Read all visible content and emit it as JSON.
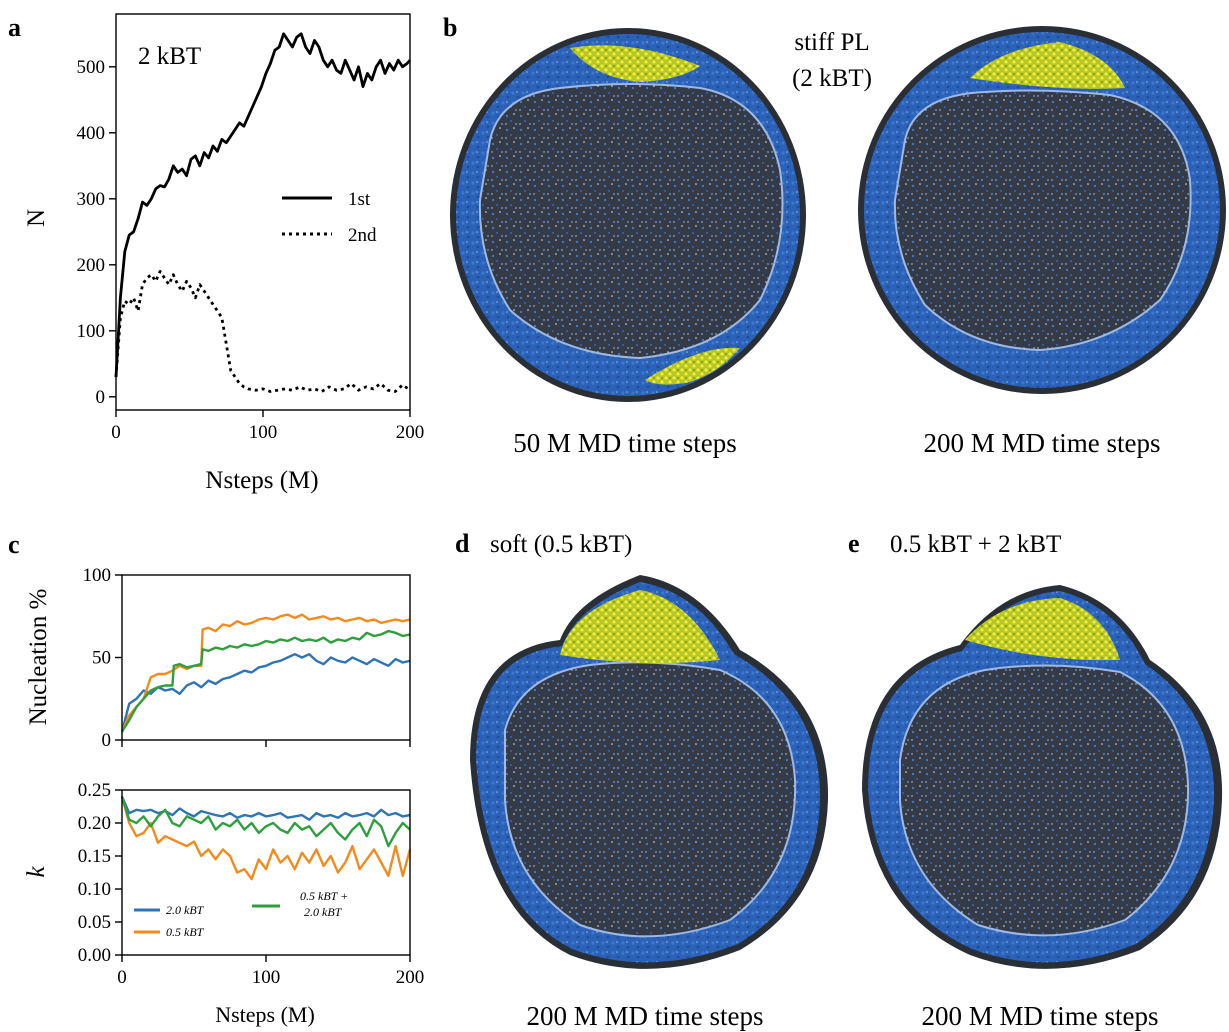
{
  "panels": {
    "a": {
      "letter": "a",
      "annotation": "2 kBT",
      "xlabel": "Nsteps (M)",
      "ylabel": "N",
      "legend": [
        "1st",
        "2nd"
      ]
    },
    "b": {
      "letter": "b",
      "title_line1": "stiff PL",
      "title_line2": "(2 kBT)",
      "caption_left": "50 M MD time steps",
      "caption_right": "200 M MD time steps"
    },
    "c": {
      "letter": "c",
      "top_ylabel": "Nucleation %",
      "bottom_ylabel": "k",
      "xlabel": "Nsteps (M)",
      "legend": [
        "2.0 kBT",
        "0.5 kBT",
        "0.5 kBT +",
        "2.0 kBT"
      ]
    },
    "d": {
      "letter": "d",
      "title": "soft (0.5 kBT)",
      "caption": "200 M MD time steps"
    },
    "e": {
      "letter": "e",
      "title": "0.5 kBT + 2 kBT",
      "caption": "200 M MD time steps"
    }
  },
  "colors": {
    "blue": "#2f74b5",
    "orange": "#f28a1e",
    "green": "#2f9e3c",
    "shell": "#2b62b8",
    "cavity": "#333a44",
    "cluster": "#cbd32a"
  },
  "chart_data": [
    {
      "id": "a",
      "type": "line",
      "xlabel": "Nsteps (M)",
      "ylabel": "N",
      "xlim": [
        0,
        200
      ],
      "ylim": [
        -20,
        580
      ],
      "xticks": [
        0,
        100,
        200
      ],
      "yticks": [
        0,
        100,
        200,
        300,
        400,
        500
      ],
      "legend_position": "center-right",
      "series": [
        {
          "name": "1st",
          "style": "solid",
          "x": [
            0,
            3,
            6,
            9,
            12,
            15,
            18,
            21,
            24,
            27,
            30,
            33,
            36,
            39,
            42,
            45,
            48,
            51,
            54,
            57,
            60,
            63,
            66,
            69,
            72,
            75,
            78,
            81,
            84,
            87,
            90,
            93,
            96,
            99,
            102,
            105,
            108,
            111,
            114,
            117,
            120,
            123,
            126,
            129,
            132,
            135,
            138,
            141,
            144,
            147,
            150,
            153,
            156,
            159,
            162,
            165,
            168,
            171,
            174,
            177,
            180,
            183,
            186,
            189,
            192,
            195,
            198,
            200
          ],
          "y": [
            30,
            150,
            220,
            245,
            250,
            270,
            295,
            290,
            300,
            315,
            320,
            318,
            330,
            350,
            340,
            345,
            335,
            360,
            365,
            350,
            370,
            362,
            380,
            372,
            390,
            385,
            395,
            405,
            415,
            410,
            425,
            440,
            455,
            470,
            490,
            505,
            525,
            530,
            550,
            540,
            530,
            545,
            550,
            530,
            520,
            540,
            530,
            510,
            500,
            510,
            495,
            490,
            510,
            495,
            480,
            500,
            470,
            490,
            480,
            500,
            510,
            490,
            505,
            495,
            510,
            500,
            505,
            510
          ]
        },
        {
          "name": "2nd",
          "style": "dotted",
          "x": [
            0,
            3,
            6,
            9,
            12,
            15,
            18,
            21,
            24,
            27,
            30,
            33,
            36,
            39,
            42,
            45,
            48,
            51,
            54,
            57,
            60,
            63,
            66,
            69,
            72,
            75,
            78,
            81,
            84,
            87,
            90,
            95,
            100,
            105,
            110,
            115,
            120,
            125,
            130,
            135,
            140,
            145,
            150,
            155,
            160,
            165,
            170,
            175,
            180,
            185,
            190,
            195,
            200
          ],
          "y": [
            30,
            120,
            145,
            140,
            150,
            130,
            170,
            180,
            185,
            175,
            190,
            180,
            170,
            185,
            170,
            160,
            175,
            165,
            150,
            170,
            160,
            150,
            140,
            130,
            120,
            80,
            40,
            30,
            20,
            15,
            12,
            10,
            12,
            8,
            10,
            12,
            10,
            15,
            10,
            12,
            8,
            15,
            10,
            12,
            20,
            10,
            15,
            12,
            20,
            10,
            8,
            18,
            10
          ]
        }
      ]
    },
    {
      "id": "c-top",
      "type": "line",
      "ylabel": "Nucleation %",
      "xlim": [
        0,
        200
      ],
      "ylim": [
        0,
        100
      ],
      "yticks": [
        0,
        50,
        100
      ],
      "series": [
        {
          "name": "2.0 kBT",
          "color": "#2f74b5",
          "x": [
            0,
            5,
            10,
            15,
            20,
            25,
            30,
            35,
            40,
            45,
            50,
            55,
            60,
            65,
            70,
            75,
            80,
            85,
            90,
            95,
            100,
            105,
            110,
            115,
            120,
            125,
            130,
            135,
            140,
            145,
            150,
            155,
            160,
            165,
            170,
            175,
            180,
            185,
            190,
            195,
            200
          ],
          "y": [
            5,
            22,
            25,
            30,
            28,
            32,
            30,
            31,
            28,
            33,
            35,
            32,
            36,
            34,
            37,
            38,
            40,
            42,
            41,
            44,
            45,
            47,
            48,
            50,
            52,
            50,
            52,
            48,
            46,
            50,
            48,
            47,
            50,
            48,
            46,
            49,
            47,
            45,
            49,
            47,
            48
          ]
        },
        {
          "name": "0.5 kBT",
          "color": "#f28a1e",
          "x": [
            0,
            5,
            10,
            15,
            20,
            25,
            30,
            35,
            40,
            45,
            50,
            55,
            56,
            60,
            65,
            70,
            75,
            80,
            85,
            90,
            95,
            100,
            105,
            110,
            115,
            120,
            125,
            130,
            135,
            140,
            145,
            150,
            155,
            160,
            165,
            170,
            175,
            180,
            185,
            190,
            195,
            200
          ],
          "y": [
            5,
            15,
            20,
            25,
            38,
            40,
            40,
            42,
            45,
            43,
            45,
            45,
            67,
            68,
            66,
            70,
            69,
            72,
            70,
            71,
            73,
            74,
            73,
            75,
            76,
            74,
            76,
            73,
            74,
            75,
            73,
            74,
            72,
            73,
            74,
            72,
            73,
            71,
            72,
            73,
            72,
            73
          ]
        },
        {
          "name": "0.5 kBT + 2.0 kBT",
          "color": "#2f9e3c",
          "x": [
            0,
            5,
            10,
            15,
            20,
            25,
            30,
            35,
            36,
            40,
            45,
            50,
            55,
            56,
            60,
            65,
            70,
            75,
            80,
            85,
            90,
            95,
            100,
            105,
            110,
            115,
            120,
            125,
            130,
            135,
            140,
            145,
            150,
            155,
            160,
            165,
            170,
            175,
            180,
            185,
            190,
            195,
            200
          ],
          "y": [
            5,
            12,
            20,
            25,
            30,
            32,
            33,
            33,
            45,
            46,
            44,
            45,
            46,
            55,
            54,
            56,
            55,
            57,
            56,
            58,
            57,
            58,
            60,
            59,
            61,
            60,
            62,
            60,
            61,
            60,
            62,
            59,
            61,
            60,
            62,
            61,
            65,
            63,
            64,
            66,
            65,
            63,
            64
          ]
        }
      ]
    },
    {
      "id": "c-bottom",
      "type": "line",
      "xlabel": "Nsteps (M)",
      "ylabel": "k",
      "xlim": [
        0,
        200
      ],
      "ylim": [
        0,
        0.25
      ],
      "xticks": [
        0,
        100,
        200
      ],
      "yticks": [
        0.0,
        0.05,
        0.1,
        0.15,
        0.2,
        0.25
      ],
      "legend_position": "lower-left",
      "series": [
        {
          "name": "2.0 kBT",
          "color": "#2f74b5",
          "x": [
            0,
            5,
            10,
            15,
            20,
            25,
            30,
            35,
            40,
            45,
            50,
            55,
            60,
            65,
            70,
            75,
            80,
            85,
            90,
            95,
            100,
            105,
            110,
            115,
            120,
            125,
            130,
            135,
            140,
            145,
            150,
            155,
            160,
            165,
            170,
            175,
            180,
            185,
            190,
            195,
            200
          ],
          "y": [
            0.24,
            0.215,
            0.22,
            0.218,
            0.22,
            0.215,
            0.218,
            0.212,
            0.222,
            0.215,
            0.21,
            0.218,
            0.215,
            0.212,
            0.21,
            0.215,
            0.208,
            0.212,
            0.21,
            0.215,
            0.21,
            0.212,
            0.215,
            0.208,
            0.21,
            0.212,
            0.205,
            0.215,
            0.21,
            0.212,
            0.208,
            0.215,
            0.21,
            0.212,
            0.215,
            0.21,
            0.22,
            0.212,
            0.215,
            0.21,
            0.212
          ]
        },
        {
          "name": "0.5 kBT",
          "color": "#f28a1e",
          "x": [
            0,
            5,
            10,
            15,
            20,
            25,
            30,
            35,
            40,
            45,
            50,
            55,
            60,
            65,
            70,
            75,
            80,
            85,
            90,
            95,
            100,
            105,
            110,
            115,
            120,
            125,
            130,
            135,
            140,
            145,
            150,
            155,
            160,
            165,
            170,
            175,
            180,
            185,
            190,
            195,
            200
          ],
          "y": [
            0.24,
            0.2,
            0.18,
            0.185,
            0.2,
            0.17,
            0.18,
            0.175,
            0.17,
            0.165,
            0.172,
            0.15,
            0.16,
            0.145,
            0.16,
            0.15,
            0.125,
            0.13,
            0.115,
            0.145,
            0.13,
            0.16,
            0.14,
            0.15,
            0.13,
            0.155,
            0.14,
            0.16,
            0.135,
            0.15,
            0.125,
            0.14,
            0.165,
            0.13,
            0.145,
            0.16,
            0.14,
            0.12,
            0.165,
            0.12,
            0.16
          ]
        },
        {
          "name": "0.5 kBT + 2.0 kBT",
          "color": "#2f9e3c",
          "x": [
            0,
            5,
            10,
            15,
            20,
            25,
            30,
            35,
            40,
            45,
            50,
            55,
            60,
            65,
            70,
            75,
            80,
            85,
            90,
            95,
            100,
            105,
            110,
            115,
            120,
            125,
            130,
            135,
            140,
            145,
            150,
            155,
            160,
            165,
            170,
            175,
            180,
            185,
            190,
            195,
            200
          ],
          "y": [
            0.24,
            0.205,
            0.2,
            0.21,
            0.195,
            0.21,
            0.22,
            0.2,
            0.195,
            0.21,
            0.205,
            0.2,
            0.21,
            0.19,
            0.2,
            0.195,
            0.205,
            0.19,
            0.2,
            0.185,
            0.195,
            0.2,
            0.19,
            0.185,
            0.2,
            0.19,
            0.195,
            0.18,
            0.19,
            0.2,
            0.185,
            0.175,
            0.19,
            0.2,
            0.18,
            0.205,
            0.195,
            0.165,
            0.185,
            0.2,
            0.19
          ]
        }
      ]
    }
  ]
}
